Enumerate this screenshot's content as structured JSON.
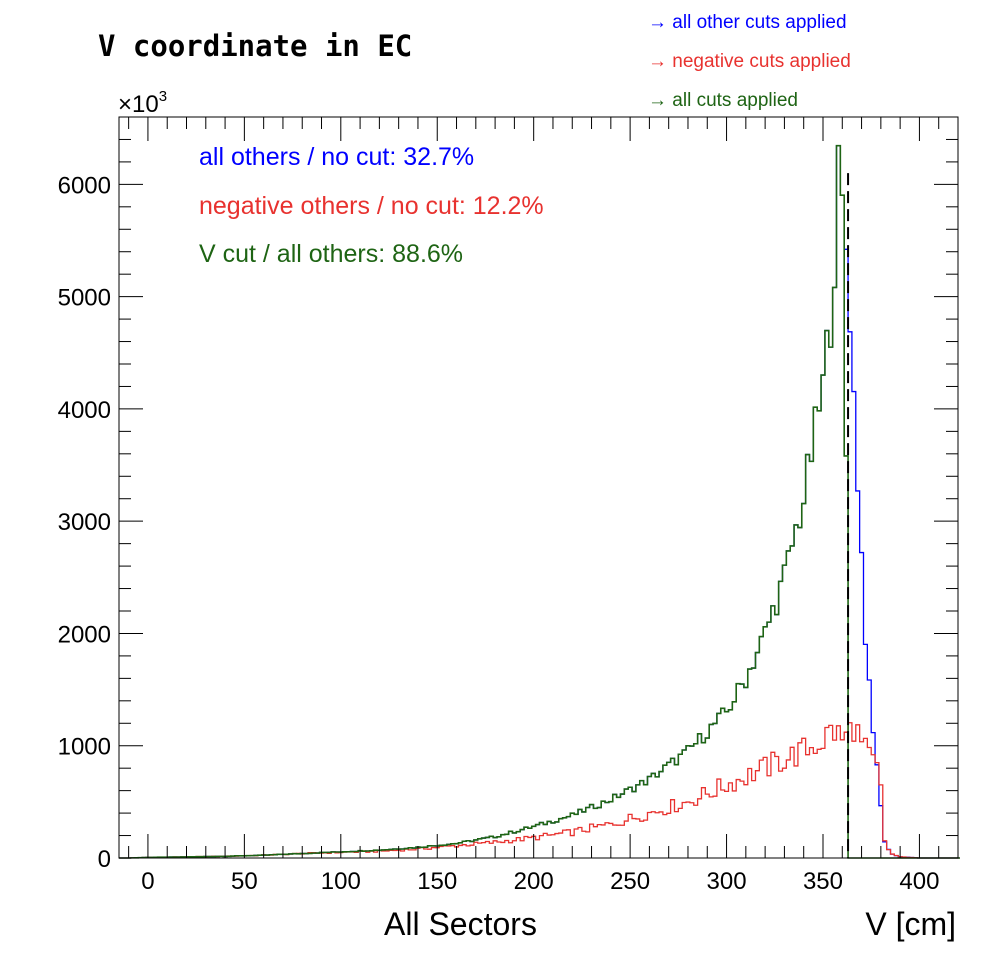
{
  "chart_data": {
    "type": "histogram",
    "title": "V coordinate in EC",
    "xlabel_left": "All Sectors",
    "xlabel": "V [cm]",
    "y_multiplier_base": "×10",
    "y_multiplier_exp": "3",
    "xlim": [
      -15,
      420
    ],
    "ylim": [
      0,
      6600
    ],
    "x_ticks": [
      0,
      50,
      100,
      150,
      200,
      250,
      300,
      350,
      400
    ],
    "x_tick_labels": [
      "0",
      "50",
      "100",
      "150",
      "200",
      "250",
      "300",
      "350",
      "400"
    ],
    "y_ticks": [
      0,
      1000,
      2000,
      3000,
      4000,
      5000,
      6000
    ],
    "y_tick_labels": [
      "0",
      "1000",
      "2000",
      "3000",
      "4000",
      "5000",
      "6000"
    ],
    "cut_line_x": 363,
    "bin_width": 2,
    "legend": [
      {
        "text": "→ all other cuts applied",
        "color": "#0000ff"
      },
      {
        "text": "→ negative cuts applied",
        "color": "#e8322f"
      },
      {
        "text": "→ all cuts applied",
        "color": "#1e6414"
      }
    ],
    "stats": [
      {
        "text": "all others / no cut:  32.7%",
        "color": "#0000ff"
      },
      {
        "text": "negative others / no cut:  12.2%",
        "color": "#e8322f"
      },
      {
        "text": "V cut / all others:  88.6%",
        "color": "#1e6414"
      }
    ],
    "series": [
      {
        "name": "all other cuts applied",
        "color": "#0000ff",
        "points": [
          [
            -10,
            0
          ],
          [
            0,
            5
          ],
          [
            20,
            10
          ],
          [
            40,
            15
          ],
          [
            60,
            25
          ],
          [
            80,
            40
          ],
          [
            100,
            55
          ],
          [
            120,
            70
          ],
          [
            140,
            95
          ],
          [
            160,
            130
          ],
          [
            180,
            190
          ],
          [
            200,
            280
          ],
          [
            220,
            380
          ],
          [
            240,
            520
          ],
          [
            260,
            700
          ],
          [
            280,
            950
          ],
          [
            300,
            1300
          ],
          [
            310,
            1600
          ],
          [
            320,
            2000
          ],
          [
            330,
            2500
          ],
          [
            340,
            3200
          ],
          [
            350,
            4200
          ],
          [
            355,
            5000
          ],
          [
            358,
            6050
          ],
          [
            361,
            5600
          ],
          [
            363,
            5300
          ],
          [
            364,
            4900
          ],
          [
            366,
            4100
          ],
          [
            368,
            3400
          ],
          [
            370,
            2700
          ],
          [
            372,
            2000
          ],
          [
            374,
            1500
          ],
          [
            376,
            1100
          ],
          [
            378,
            850
          ],
          [
            380,
            450
          ],
          [
            382,
            150
          ],
          [
            385,
            40
          ],
          [
            390,
            10
          ],
          [
            400,
            0
          ],
          [
            420,
            0
          ]
        ]
      },
      {
        "name": "negative cuts applied",
        "color": "#e8322f",
        "points": [
          [
            -10,
            0
          ],
          [
            0,
            5
          ],
          [
            20,
            10
          ],
          [
            40,
            15
          ],
          [
            60,
            25
          ],
          [
            80,
            40
          ],
          [
            100,
            50
          ],
          [
            120,
            60
          ],
          [
            140,
            80
          ],
          [
            160,
            110
          ],
          [
            180,
            140
          ],
          [
            200,
            180
          ],
          [
            220,
            230
          ],
          [
            240,
            300
          ],
          [
            260,
            400
          ],
          [
            280,
            500
          ],
          [
            300,
            650
          ],
          [
            320,
            800
          ],
          [
            330,
            880
          ],
          [
            340,
            950
          ],
          [
            350,
            1050
          ],
          [
            355,
            1150
          ],
          [
            360,
            1050
          ],
          [
            363,
            1100
          ],
          [
            366,
            1200
          ],
          [
            370,
            1000
          ],
          [
            374,
            900
          ],
          [
            378,
            800
          ],
          [
            380,
            600
          ],
          [
            382,
            150
          ],
          [
            385,
            40
          ],
          [
            390,
            10
          ],
          [
            400,
            0
          ],
          [
            420,
            0
          ]
        ]
      },
      {
        "name": "all cuts applied",
        "color": "#1e6414",
        "points": [
          [
            -10,
            0
          ],
          [
            0,
            5
          ],
          [
            20,
            10
          ],
          [
            40,
            15
          ],
          [
            60,
            25
          ],
          [
            80,
            40
          ],
          [
            100,
            55
          ],
          [
            120,
            70
          ],
          [
            140,
            95
          ],
          [
            160,
            130
          ],
          [
            180,
            190
          ],
          [
            200,
            280
          ],
          [
            220,
            380
          ],
          [
            240,
            520
          ],
          [
            260,
            700
          ],
          [
            280,
            950
          ],
          [
            300,
            1300
          ],
          [
            310,
            1600
          ],
          [
            320,
            2000
          ],
          [
            330,
            2500
          ],
          [
            340,
            3200
          ],
          [
            350,
            4200
          ],
          [
            355,
            5000
          ],
          [
            358,
            6050
          ],
          [
            361,
            5600
          ],
          [
            363,
            1600
          ],
          [
            364,
            0
          ],
          [
            420,
            0
          ]
        ]
      }
    ]
  }
}
